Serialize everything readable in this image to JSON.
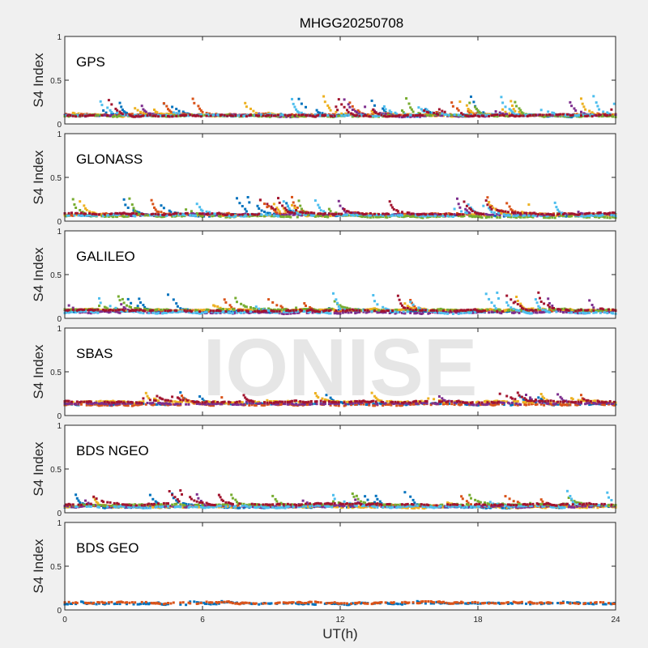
{
  "figure": {
    "title": "MHGG20250708",
    "xlabel": "UT(h)",
    "watermark": "IONISE",
    "background": "#f0f0f0"
  },
  "chart_data": [
    {
      "type": "scatter",
      "panel": "GPS",
      "ylabel": "S4 Index",
      "xlim": [
        0,
        24
      ],
      "ylim": [
        0,
        1
      ],
      "xticks": [
        0,
        6,
        12,
        18,
        24
      ],
      "yticks": [
        0,
        0.5,
        1
      ],
      "baseline_s4": 0.09,
      "max_s4": 0.32,
      "series_colors": [
        "#0072BD",
        "#D95319",
        "#EDB120",
        "#7E2F8E",
        "#77AC30",
        "#4DBEEE",
        "#A2142F"
      ]
    },
    {
      "type": "scatter",
      "panel": "GLONASS",
      "ylabel": "S4 Index",
      "xlim": [
        0,
        24
      ],
      "ylim": [
        0,
        1
      ],
      "xticks": [
        0,
        6,
        12,
        18,
        24
      ],
      "yticks": [
        0,
        0.5,
        1
      ],
      "baseline_s4": 0.07,
      "max_s4": 0.28,
      "series_colors": [
        "#0072BD",
        "#D95319",
        "#EDB120",
        "#7E2F8E",
        "#77AC30",
        "#4DBEEE",
        "#A2142F"
      ]
    },
    {
      "type": "scatter",
      "panel": "GALILEO",
      "ylabel": "S4 Index",
      "xlim": [
        0,
        24
      ],
      "ylim": [
        0,
        1
      ],
      "xticks": [
        0,
        6,
        12,
        18,
        24
      ],
      "yticks": [
        0,
        0.5,
        1
      ],
      "baseline_s4": 0.08,
      "max_s4": 0.3,
      "series_colors": [
        "#0072BD",
        "#D95319",
        "#EDB120",
        "#7E2F8E",
        "#77AC30",
        "#4DBEEE",
        "#A2142F"
      ]
    },
    {
      "type": "scatter",
      "panel": "SBAS",
      "ylabel": "S4 Index",
      "xlim": [
        0,
        24
      ],
      "ylim": [
        0,
        1
      ],
      "xticks": [
        0,
        6,
        12,
        18,
        24
      ],
      "yticks": [
        0,
        0.5,
        1
      ],
      "baseline_s4": 0.14,
      "max_s4": 0.27,
      "series_colors": [
        "#0072BD",
        "#D95319",
        "#EDB120",
        "#7E2F8E",
        "#A2142F"
      ]
    },
    {
      "type": "scatter",
      "panel": "BDS NGEO",
      "ylabel": "S4 Index",
      "xlim": [
        0,
        24
      ],
      "ylim": [
        0,
        1
      ],
      "xticks": [
        0,
        6,
        12,
        18,
        24
      ],
      "yticks": [
        0,
        0.5,
        1
      ],
      "baseline_s4": 0.08,
      "max_s4": 0.26,
      "series_colors": [
        "#0072BD",
        "#D95319",
        "#EDB120",
        "#7E2F8E",
        "#77AC30",
        "#4DBEEE",
        "#A2142F"
      ]
    },
    {
      "type": "scatter",
      "panel": "BDS GEO",
      "ylabel": "S4 Index",
      "xlim": [
        0,
        24
      ],
      "ylim": [
        0,
        1
      ],
      "xticks": [
        0,
        6,
        12,
        18,
        24
      ],
      "yticks": [
        0,
        0.5,
        1
      ],
      "baseline_s4": 0.08,
      "max_s4": 0.1,
      "series_colors": [
        "#0072BD",
        "#D95319"
      ]
    }
  ]
}
